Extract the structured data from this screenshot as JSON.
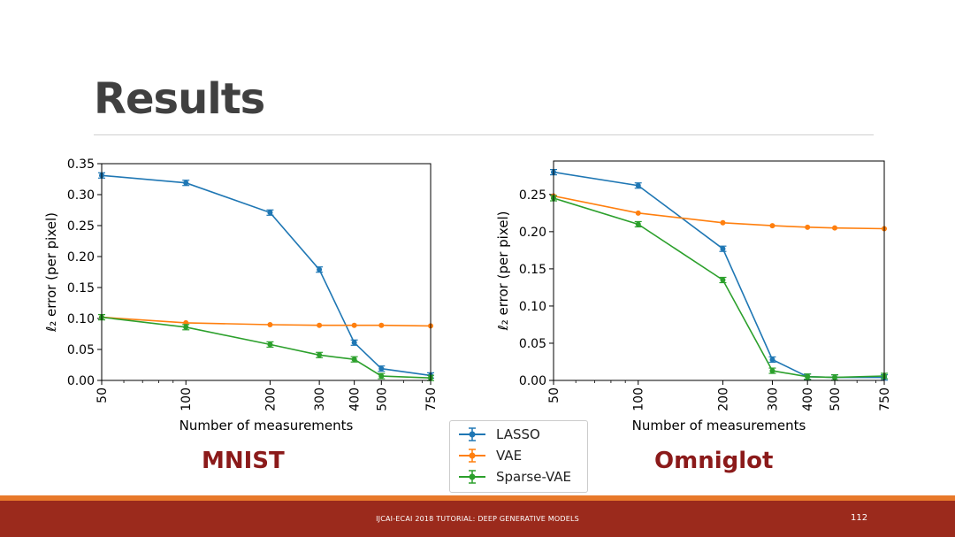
{
  "slide": {
    "title": "Results"
  },
  "footer": {
    "text": "IJCAI-ECAI 2018 TUTORIAL: DEEP GENERATIVE MODELS",
    "page_number": "112"
  },
  "colors": {
    "lasso": "#1f77b4",
    "vae": "#ff7f0e",
    "sparse_vae": "#2ca02c",
    "label": "#8b1a1a",
    "footer_bg": "#9b2a1c",
    "stripe": "#e8792a"
  },
  "legend": {
    "items": [
      {
        "label": "LASSO"
      },
      {
        "label": "VAE"
      },
      {
        "label": "Sparse-VAE"
      }
    ]
  },
  "chart_data": [
    {
      "type": "line",
      "name": "MNIST",
      "label": "MNIST",
      "xscale": "log",
      "x": [
        50,
        100,
        200,
        300,
        400,
        500,
        750
      ],
      "xticks": [
        "50",
        "100",
        "200",
        "300",
        "400",
        "500",
        "750"
      ],
      "xlabel": "Number of measurements",
      "ylabel": "ℓ₂ error (per pixel)",
      "ylim": [
        0,
        0.35
      ],
      "yticks": [
        "0.00",
        "0.05",
        "0.10",
        "0.15",
        "0.20",
        "0.25",
        "0.30",
        "0.35"
      ],
      "series": [
        {
          "name": "LASSO",
          "values": [
            0.331,
            0.319,
            0.271,
            0.179,
            0.061,
            0.019,
            0.008
          ]
        },
        {
          "name": "VAE",
          "values": [
            0.102,
            0.093,
            0.09,
            0.089,
            0.089,
            0.089,
            0.088
          ]
        },
        {
          "name": "Sparse-VAE",
          "values": [
            0.102,
            0.086,
            0.058,
            0.041,
            0.034,
            0.007,
            0.004
          ]
        }
      ]
    },
    {
      "type": "line",
      "name": "Omniglot",
      "label": "Omniglot",
      "xscale": "log",
      "x": [
        50,
        100,
        200,
        300,
        400,
        500,
        750
      ],
      "xticks": [
        "50",
        "100",
        "200",
        "300",
        "400",
        "500",
        "750"
      ],
      "xlabel": "Number of measurements",
      "ylabel": "ℓ₂ error (per pixel)",
      "ylim": [
        0,
        0.295
      ],
      "yticks": [
        "0.00",
        "0.05",
        "0.10",
        "0.15",
        "0.20",
        "0.25"
      ],
      "series": [
        {
          "name": "LASSO",
          "values": [
            0.28,
            0.262,
            0.177,
            0.028,
            0.005,
            0.004,
            0.004
          ]
        },
        {
          "name": "VAE",
          "values": [
            0.248,
            0.225,
            0.212,
            0.208,
            0.206,
            0.205,
            0.204
          ]
        },
        {
          "name": "Sparse-VAE",
          "values": [
            0.245,
            0.21,
            0.135,
            0.013,
            0.005,
            0.004,
            0.006
          ]
        }
      ]
    }
  ]
}
